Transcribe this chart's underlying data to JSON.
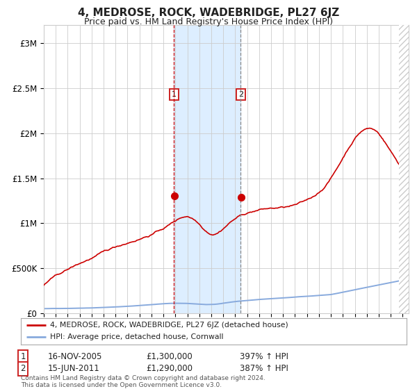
{
  "title": "4, MEDROSE, ROCK, WADEBRIDGE, PL27 6JZ",
  "subtitle": "Price paid vs. HM Land Registry's House Price Index (HPI)",
  "title_fontsize": 11,
  "subtitle_fontsize": 9,
  "bg_color": "#ffffff",
  "plot_bg_color": "#ffffff",
  "grid_color": "#cccccc",
  "red_line_color": "#cc0000",
  "blue_line_color": "#88aadd",
  "highlight_bg": "#ddeeff",
  "sale1_date": 2005.88,
  "sale1_value": 1300000,
  "sale2_date": 2011.46,
  "sale2_value": 1290000,
  "vline1_color": "#cc0000",
  "vline2_color": "#888888",
  "ylim_max": 3200000,
  "xmin": 1995.0,
  "xmax": 2025.5,
  "legend_label_red": "4, MEDROSE, ROCK, WADEBRIDGE, PL27 6JZ (detached house)",
  "legend_label_blue": "HPI: Average price, detached house, Cornwall",
  "table_row1": [
    "1",
    "16-NOV-2005",
    "£1,300,000",
    "397% ↑ HPI"
  ],
  "table_row2": [
    "2",
    "15-JUN-2011",
    "£1,290,000",
    "387% ↑ HPI"
  ],
  "footer": "Contains HM Land Registry data © Crown copyright and database right 2024.\nThis data is licensed under the Open Government Licence v3.0.",
  "hatch_color": "#cccccc"
}
